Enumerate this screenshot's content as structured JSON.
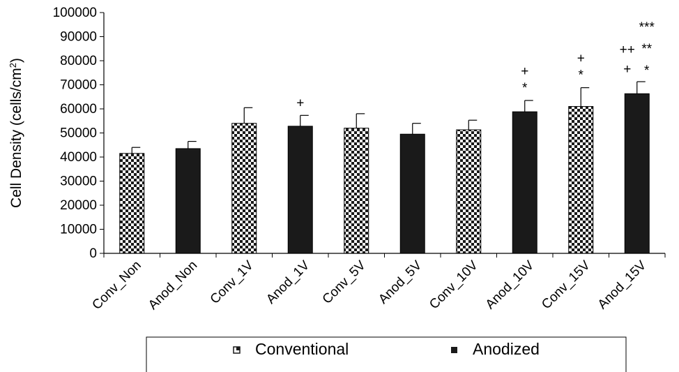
{
  "chart_data": {
    "type": "bar",
    "ylabel": {
      "prefix": "Cell Density (cells/cm",
      "sup": "2",
      "suffix": ")"
    },
    "ylim": [
      0,
      100000
    ],
    "yticks": [
      "0",
      "10000",
      "20000",
      "30000",
      "40000",
      "50000",
      "60000",
      "70000",
      "80000",
      "90000",
      "100000"
    ],
    "categories": [
      "Conv_Non",
      "Anod_Non",
      "Conv_1V",
      "Anod_1V",
      "Conv_5V",
      "Anod_5V",
      "Conv_10V",
      "Anod_10V",
      "Conv_15V",
      "Anod_15V"
    ],
    "values": [
      41500,
      43500,
      54000,
      52800,
      52000,
      49500,
      51300,
      58800,
      61000,
      66300
    ],
    "errors": [
      2500,
      3000,
      6500,
      4500,
      6000,
      4500,
      4000,
      4700,
      7800,
      5000
    ],
    "series_of_bar": [
      "Conventional",
      "Anodized",
      "Conventional",
      "Anodized",
      "Conventional",
      "Anodized",
      "Conventional",
      "Anodized",
      "Conventional",
      "Anodized"
    ],
    "annotations": [
      {
        "category": "Anod_1V",
        "marks": [
          "+"
        ]
      },
      {
        "category": "Anod_10V",
        "marks": [
          "+",
          "*"
        ]
      },
      {
        "category": "Conv_15V",
        "marks": [
          "+",
          "*"
        ]
      },
      {
        "category": "Anod_15V",
        "marks": [
          "++",
          "+",
          "***",
          "**",
          "*"
        ]
      }
    ],
    "legend": {
      "position": "bottom",
      "entries": [
        "Conventional",
        "Anodized"
      ]
    },
    "grid": false
  },
  "colors": {
    "anodized": "#1a1a1a",
    "checker_dark": "#1a1a1a",
    "checker_light": "#ffffff",
    "axis": "#000000"
  }
}
